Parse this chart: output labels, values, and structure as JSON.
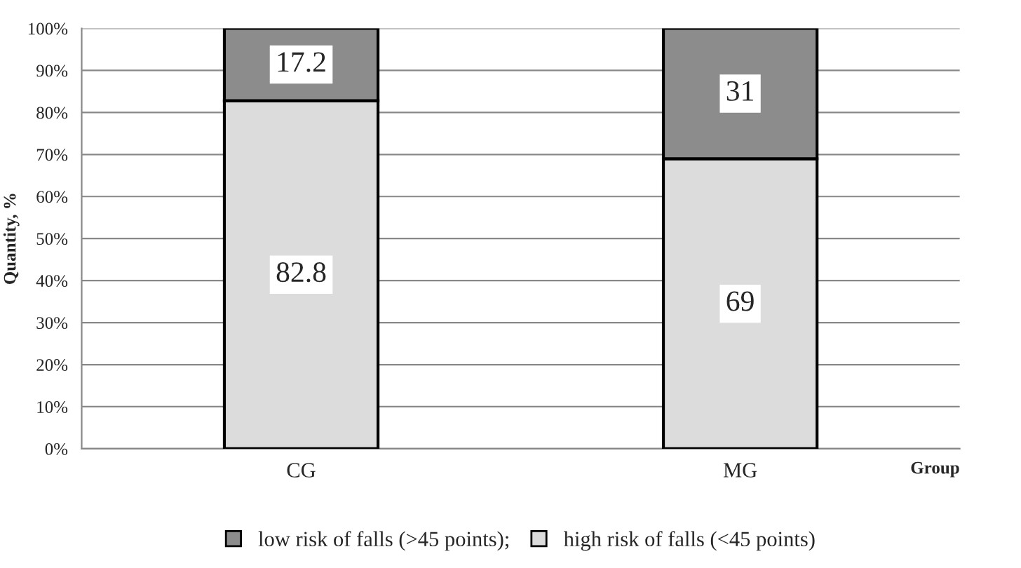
{
  "chart_data": {
    "type": "bar",
    "stacked": true,
    "ylabel": "Quantity, %",
    "xlabel": "Group",
    "categories": [
      "CG",
      "MG"
    ],
    "series": [
      {
        "name": "high risk of falls (<45 points)",
        "color": "#dcdcdc",
        "values": [
          82.8,
          69
        ]
      },
      {
        "name": "low risk of falls (>45 points);",
        "color": "#8c8c8c",
        "values": [
          17.2,
          31
        ]
      }
    ],
    "ylim": [
      0,
      100
    ],
    "yticks": [
      {
        "value": 0,
        "label": "0%"
      },
      {
        "value": 10,
        "label": "10%"
      },
      {
        "value": 20,
        "label": "20%"
      },
      {
        "value": 30,
        "label": "30%"
      },
      {
        "value": 40,
        "label": "40%"
      },
      {
        "value": 50,
        "label": "50%"
      },
      {
        "value": 60,
        "label": "60%"
      },
      {
        "value": 70,
        "label": "70%"
      },
      {
        "value": 80,
        "label": "80%"
      },
      {
        "value": 90,
        "label": "90%"
      },
      {
        "value": 100,
        "label": "100%"
      }
    ],
    "grid": "y",
    "legend": "bottom",
    "data_labels": true
  }
}
